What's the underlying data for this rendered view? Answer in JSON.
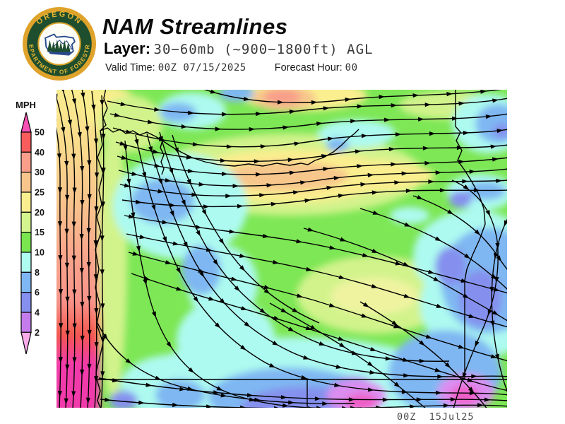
{
  "header": {
    "title": "NAM Streamlines",
    "layer_label": "Layer:",
    "layer_value": "30−60mb (~900−1800ft) AGL",
    "valid_time_label": "Valid Time:",
    "valid_time_value": "00Z 07/15/2025",
    "forecast_hour_label": "Forecast Hour:",
    "forecast_hour_value": "00"
  },
  "logo": {
    "top_text": "OREGON",
    "bottom_text": "DEPARTMENT OF FORESTRY"
  },
  "scale": {
    "unit_label": "MPH",
    "ticks": [
      "50",
      "40",
      "30",
      "25",
      "20",
      "15",
      "10",
      "8",
      "6",
      "4",
      "2"
    ],
    "colors": [
      "#FA50B4",
      "#F85C5C",
      "#F99E8B",
      "#F8C68D",
      "#FAEE8F",
      "#D4F48E",
      "#7AE751",
      "#AEFBF0",
      "#7FB7F2",
      "#8590EE",
      "#C47CEC",
      "#F9ACE9"
    ]
  },
  "map": {
    "timestamp": "00Z  15Jul25"
  }
}
